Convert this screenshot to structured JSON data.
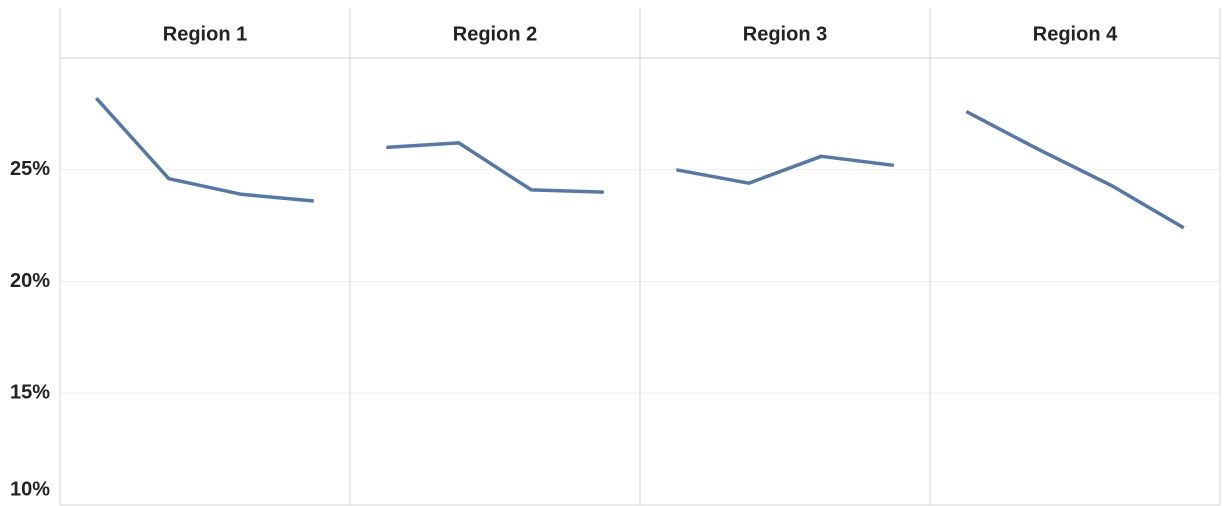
{
  "chart_data": {
    "type": "line",
    "color": "#5778a4",
    "grid": true,
    "panels": [
      {
        "title": "Region 1",
        "values": [
          28.2,
          24.6,
          23.9,
          23.6
        ]
      },
      {
        "title": "Region 2",
        "values": [
          26.0,
          26.2,
          24.1,
          24.0
        ]
      },
      {
        "title": "Region 3",
        "values": [
          25.0,
          24.4,
          25.6,
          25.2
        ]
      },
      {
        "title": "Region 4",
        "values": [
          27.6,
          25.9,
          24.3,
          22.4
        ]
      }
    ],
    "ylim": [
      10,
      30
    ],
    "yticks": [
      {
        "value": 10,
        "label": "10%"
      },
      {
        "value": 15,
        "label": "15%"
      },
      {
        "value": 20,
        "label": "20%"
      },
      {
        "value": 25,
        "label": "25%"
      }
    ]
  }
}
